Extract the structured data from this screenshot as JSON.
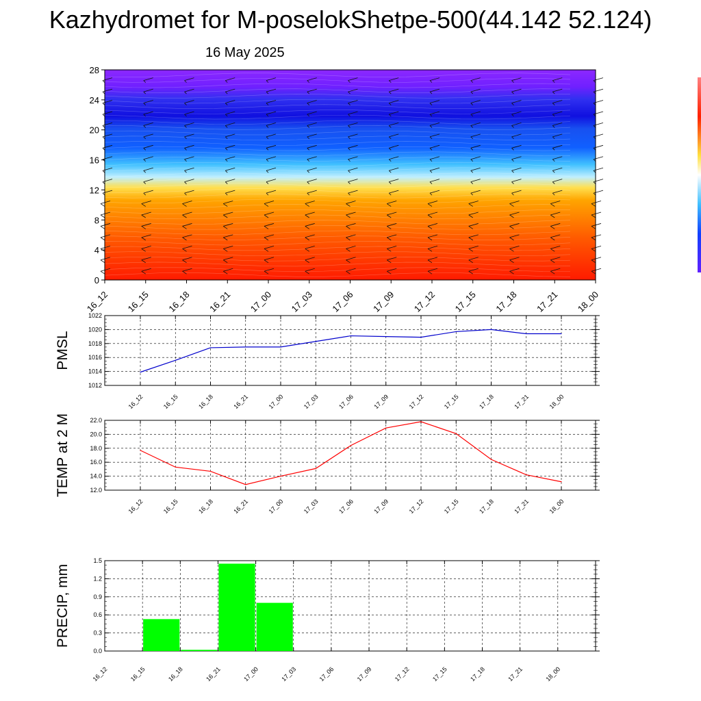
{
  "header": {
    "title": "Kazhydromet for M-poselokShetpe-500(44.142 52.124)",
    "date": "16 May 2025"
  },
  "chart_data": [
    {
      "type": "heatmap",
      "name": "vertical-cross-section",
      "x_ticks": [
        "16_12",
        "16_15",
        "16_18",
        "16_21",
        "17_00",
        "17_03",
        "17_06",
        "17_09",
        "17_12",
        "17_15",
        "17_18",
        "17_21",
        "18_00"
      ],
      "y_ticks": [
        0,
        4,
        8,
        12,
        16,
        20,
        24,
        28
      ],
      "ylim": [
        0,
        28
      ],
      "colors": {
        "low": "#ff2000",
        "mid_low": "#ff9000",
        "yellow": "#ffe040",
        "cyan": "#40c8ff",
        "blue": "#1040ff",
        "dark_blue": "#1010e0",
        "purple": "#8020ff"
      }
    },
    {
      "type": "line",
      "name": "pmsl",
      "ylabel": "PMSL",
      "x_ticks": [
        "16_12",
        "16_15",
        "16_18",
        "16_21",
        "17_00",
        "17_03",
        "17_06",
        "17_09",
        "17_12",
        "17_15",
        "17_18",
        "17_21",
        "18_00"
      ],
      "values": [
        1013.9,
        1015.6,
        1017.4,
        1017.5,
        1017.5,
        1018.3,
        1019.1,
        1019.0,
        1018.9,
        1019.7,
        1020.0,
        1019.4,
        1019.4
      ],
      "y_ticks": [
        1012,
        1014,
        1016,
        1018,
        1020,
        1022
      ],
      "ylim": [
        1012,
        1022
      ],
      "color": "#0000cc"
    },
    {
      "type": "line",
      "name": "temp",
      "ylabel": "TEMP at 2 M",
      "x_ticks": [
        "16_12",
        "16_15",
        "16_18",
        "16_21",
        "17_00",
        "17_03",
        "17_06",
        "17_09",
        "17_12",
        "17_15",
        "17_18",
        "17_21",
        "18_00"
      ],
      "values": [
        17.7,
        15.3,
        14.7,
        12.8,
        14.0,
        15.1,
        18.4,
        20.9,
        21.8,
        20.1,
        16.4,
        14.2,
        13.2
      ],
      "y_ticks": [
        "12.0",
        "14.0",
        "16.0",
        "18.0",
        "20.0",
        "22.0"
      ],
      "ylim": [
        12,
        22
      ],
      "color": "#ff0000"
    },
    {
      "type": "bar",
      "name": "precip",
      "ylabel": "PRECIP, mm",
      "x_ticks": [
        "16_12",
        "16_15",
        "16_18",
        "16_21",
        "17_00",
        "17_03",
        "17_06",
        "17_09",
        "17_12",
        "17_15",
        "17_18",
        "17_21",
        "18_00"
      ],
      "values": [
        0,
        0.53,
        0.02,
        1.45,
        0.8,
        0,
        0,
        0,
        0,
        0,
        0,
        0,
        0
      ],
      "y_ticks": [
        "0.0",
        "0.3",
        "0.6",
        "0.9",
        "1.2",
        "1.5"
      ],
      "ylim": [
        0,
        1.5
      ],
      "color": "#00ff00"
    }
  ]
}
